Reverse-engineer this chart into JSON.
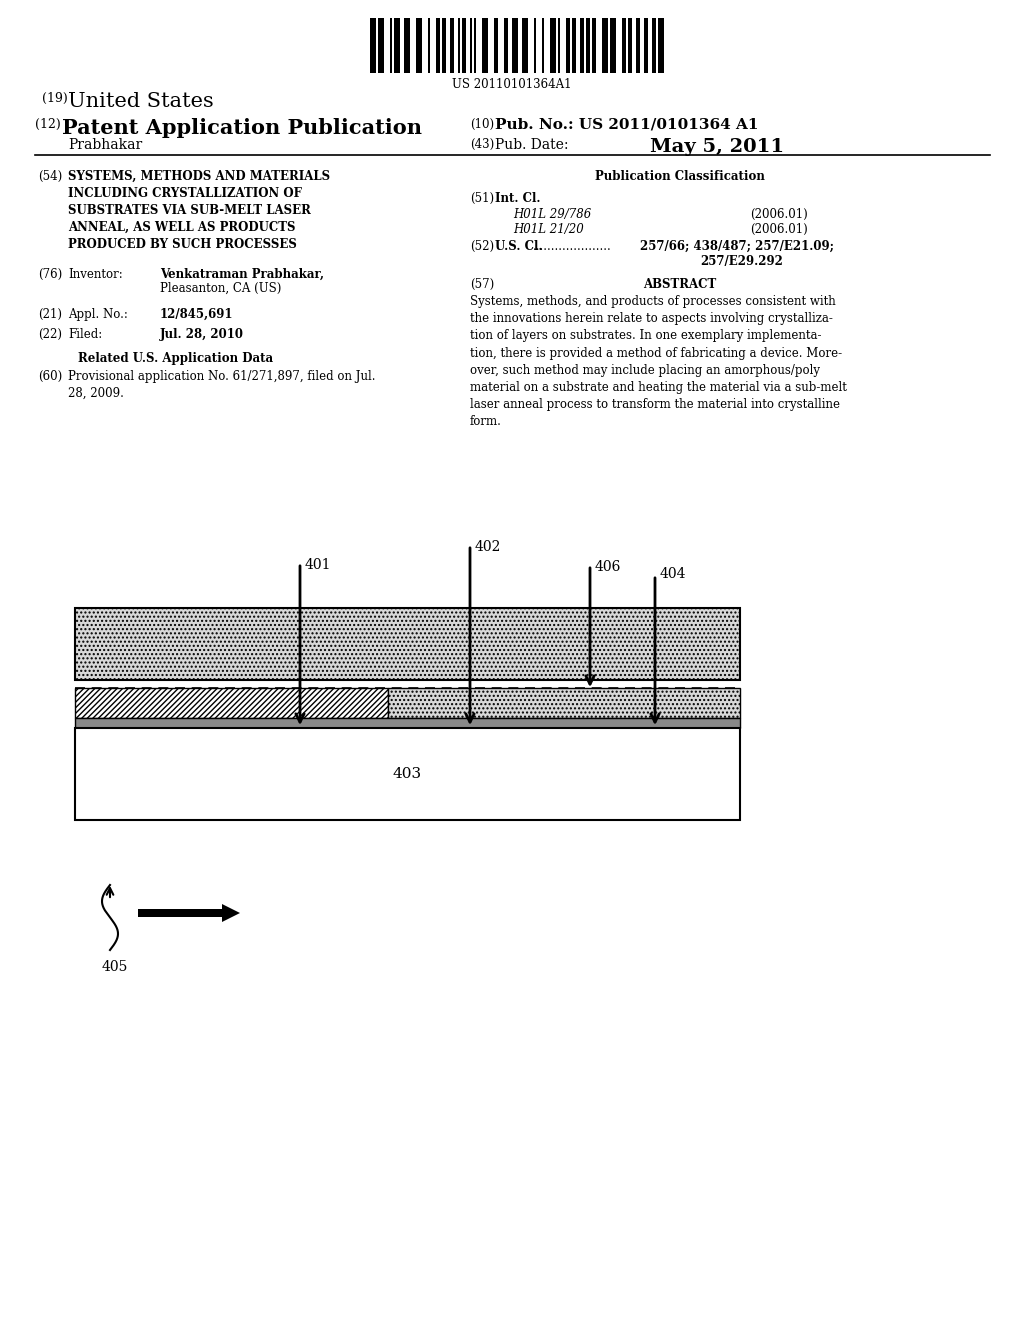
{
  "barcode_text": "US 20110101364A1",
  "title_19": "(19) United States",
  "title_12": "(12) Patent Application Publication",
  "title_10": "(10) Pub. No.: US 2011/0101364 A1",
  "author": "Prabhakar",
  "pub_date_label": "(43) Pub. Date:",
  "pub_date": "May 5, 2011",
  "field_54_label": "(54)",
  "field_54": "SYSTEMS, METHODS AND MATERIALS\nINCLUDING CRYSTALLIZATION OF\nSUBSTRATES VIA SUB-MELT LASER\nANNEAL, AS WELL AS PRODUCTS\nPRODUCED BY SUCH PROCESSES",
  "field_76_label": "(76)",
  "field_76_key": "Inventor:",
  "field_76_val": "Venkatraman Prabhakar,\nPleasanton, CA (US)",
  "field_21_label": "(21)",
  "field_21_key": "Appl. No.:",
  "field_21_val": "12/845,691",
  "field_22_label": "(22)",
  "field_22_key": "Filed:",
  "field_22_val": "Jul. 28, 2010",
  "related_title": "Related U.S. Application Data",
  "field_60_label": "(60)",
  "field_60_val": "Provisional application No. 61/271,897, filed on Jul.\n28, 2009.",
  "pub_class_title": "Publication Classification",
  "field_51_label": "(51)",
  "field_51_key": "Int. Cl.",
  "field_51_a": "H01L 29/786",
  "field_51_a_date": "(2006.01)",
  "field_51_b": "H01L 21/20",
  "field_51_b_date": "(2006.01)",
  "field_52_label": "(52)",
  "field_52_key": "U.S. Cl.",
  "field_52_val": "257/66; 438/487; 257/E21.09;\n257/E29.292",
  "field_57_label": "(57)",
  "field_57_key": "ABSTRACT",
  "abstract": "Systems, methods, and products of processes consistent with the innovations herein relate to aspects involving crystalliza-tion of layers on substrates. In one exemplary implementa-tion, there is provided a method of fabricating a device. More-over, such method may include placing an amorphous/poly material on a substrate and heating the material via a sub-melt laser anneal process to transform the material into crystalline form.",
  "bg_color": "#ffffff",
  "text_color": "#000000",
  "diagram": {
    "label_402": "402",
    "label_401": "401",
    "label_403": "403",
    "label_404": "404",
    "label_406": "406",
    "label_405": "405"
  }
}
